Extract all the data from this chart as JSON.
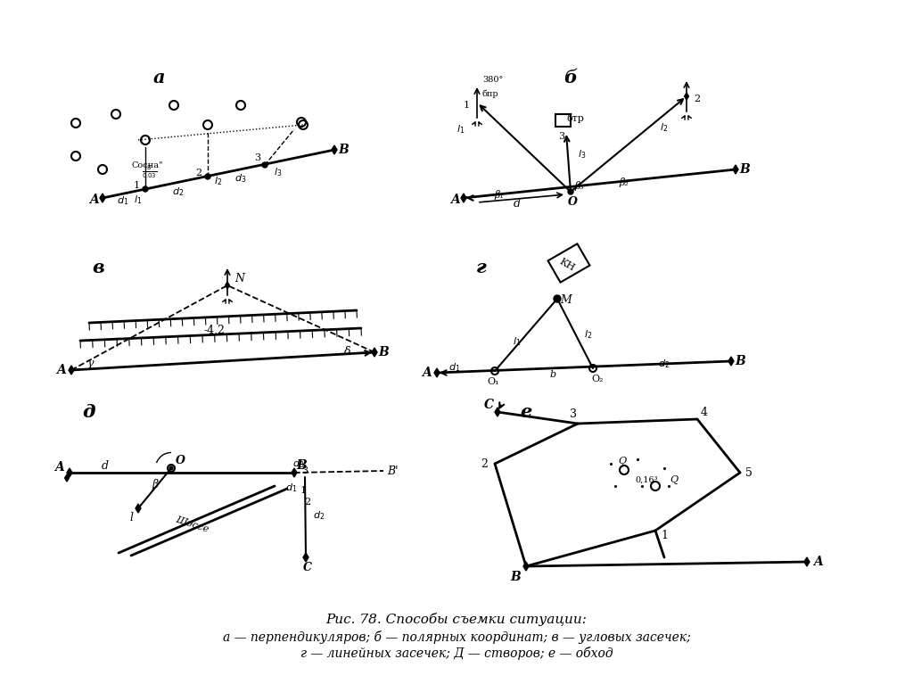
{
  "title_line1": "Рис. 78. Способы съемки ситуации:",
  "title_line2": "а — перпендикуляров; б — полярных координат; в — угловых засечек;",
  "title_line3": "г — линейных засечек; Д — створов; е — обход"
}
